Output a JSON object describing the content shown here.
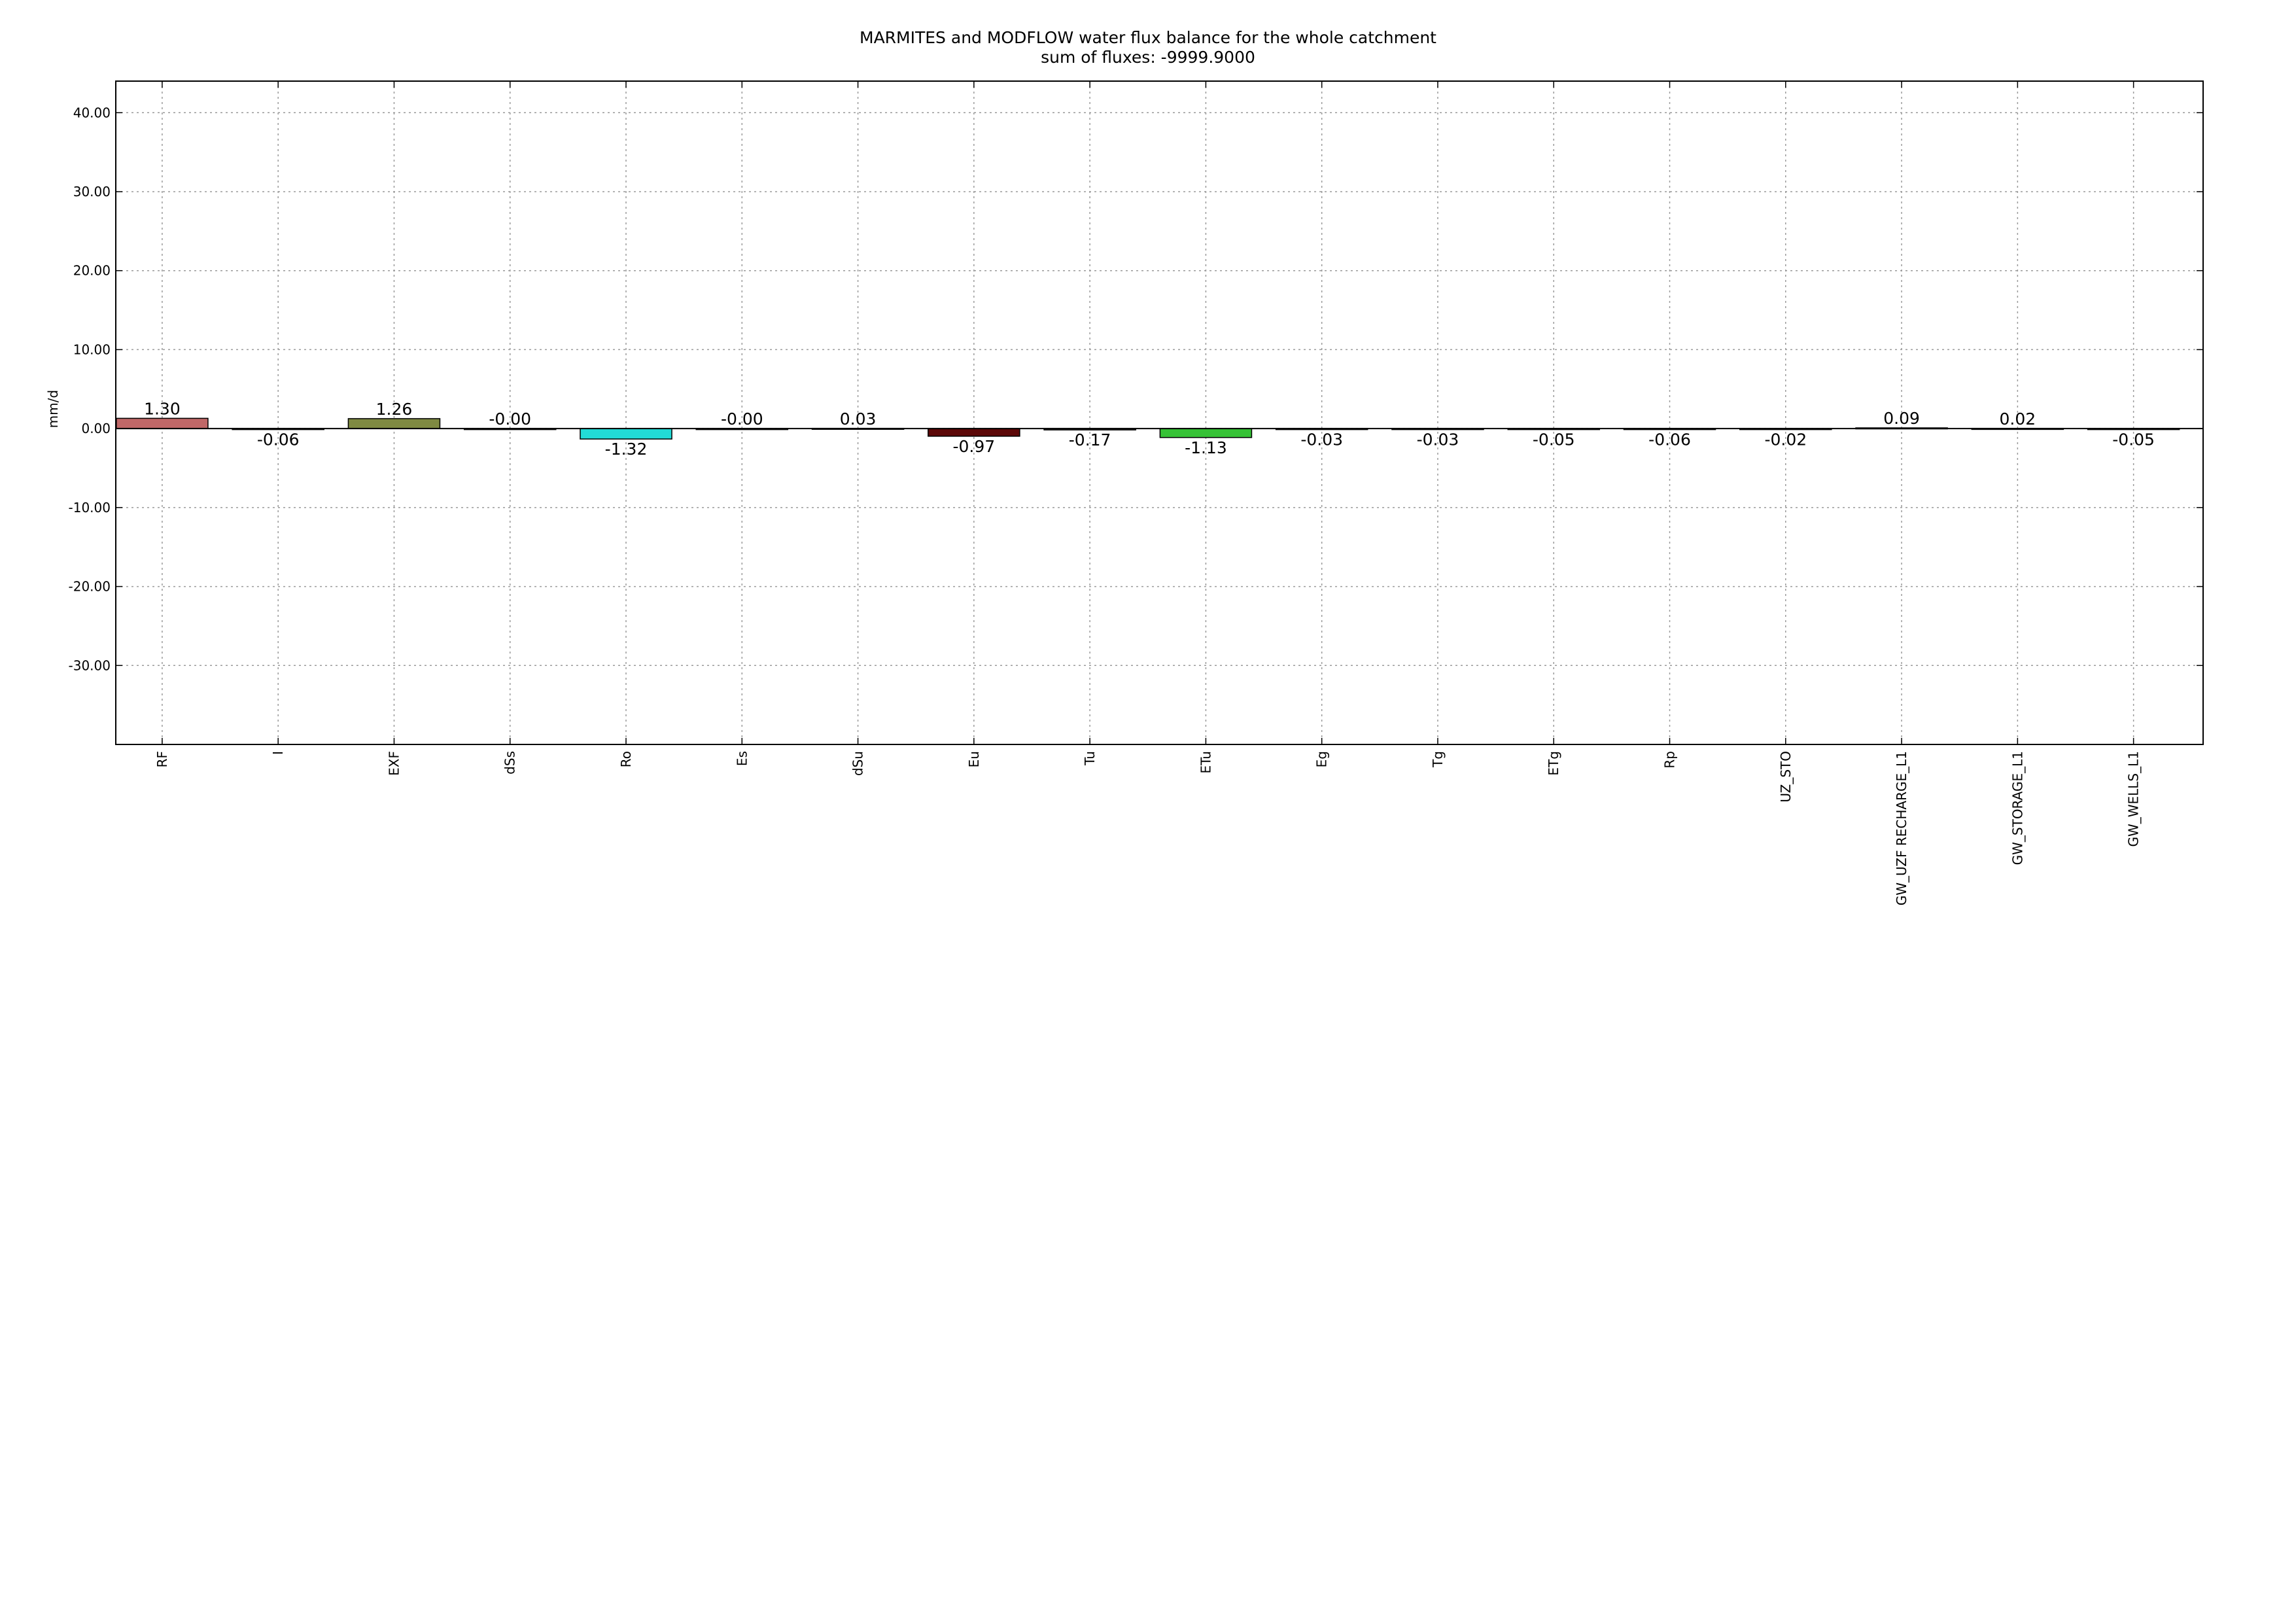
{
  "chart_data": {
    "type": "bar",
    "title": "MARMITES and MODFLOW water flux balance for the whole catchment",
    "subtitle": "sum of fluxes: -9999.9000",
    "xlabel": "",
    "ylabel": "mm/d",
    "ylim": [
      -40,
      44
    ],
    "yticks": [
      40,
      30,
      20,
      10,
      0,
      -10,
      -20,
      -30
    ],
    "ytick_labels": [
      "40.00",
      "30.00",
      "20.00",
      "10.00",
      "0.00",
      "-10.00",
      "-20.00",
      "-30.00"
    ],
    "grid": true,
    "categories": [
      "RF",
      "I",
      "EXF",
      "dSs",
      "Ro",
      "Es",
      "dSu",
      "Eu",
      "Tu",
      "ETu",
      "Eg",
      "Tg",
      "ETg",
      "Rp",
      "UZ_STO",
      "GW_UZF RECHARGE_L1",
      "GW_STORAGE_L1",
      "GW_WELLS_L1"
    ],
    "values": [
      1.3,
      -0.06,
      1.26,
      -0.0,
      -1.32,
      -0.0,
      0.03,
      -0.97,
      -0.17,
      -1.13,
      -0.03,
      -0.03,
      -0.05,
      -0.06,
      -0.02,
      0.09,
      0.02,
      -0.05
    ],
    "value_labels": [
      "1.30",
      "-0.06",
      "1.26",
      "-0.00",
      "-1.32",
      "-0.00",
      "0.03",
      "-0.97",
      "-0.17",
      "-1.13",
      "-0.03",
      "-0.03",
      "-0.05",
      "-0.06",
      "-0.02",
      "0.09",
      "0.02",
      "-0.05"
    ],
    "colors": [
      "#c06868",
      "#2f3f6b",
      "#7f8a42",
      "#3f2f5f",
      "#22dbd6",
      "#2a6f9a",
      "#c08080",
      "#5c0808",
      "#5a5a5a",
      "#36c236",
      "#444444",
      "#444444",
      "#3a3a3a",
      "#3a3a3a",
      "#444444",
      "#888888",
      "#888888",
      "#3a3a3a"
    ]
  }
}
